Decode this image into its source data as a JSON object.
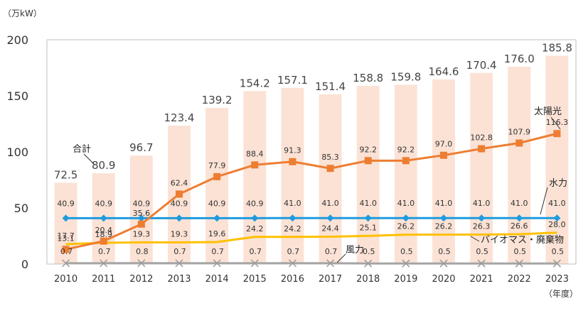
{
  "chart_data": {
    "type": "bar+line",
    "unit_label": "（万kW）",
    "x_unit_label": "（年度）",
    "categories": [
      "2010",
      "2011",
      "2012",
      "2013",
      "2014",
      "2015",
      "2016",
      "2017",
      "2018",
      "2019",
      "2020",
      "2021",
      "2022",
      "2023"
    ],
    "ylim": [
      0,
      200
    ],
    "yticks": [
      "0",
      "50",
      "100",
      "150",
      "200"
    ],
    "grid": false,
    "bars": {
      "name": "合計",
      "color": "#fbe2d5",
      "values": [
        72.5,
        80.9,
        96.7,
        123.4,
        139.2,
        154.2,
        157.1,
        151.4,
        158.8,
        159.8,
        164.6,
        170.4,
        176.0,
        185.8
      ],
      "labels": [
        "72.5",
        "80.9",
        "96.7",
        "123.4",
        "139.2",
        "154.2",
        "157.1",
        "151.4",
        "158.8",
        "159.8",
        "164.6",
        "170.4",
        "176.0",
        "185.8"
      ]
    },
    "series": [
      {
        "name": "太陽光",
        "color": "#ed7d31",
        "marker": "square",
        "values": [
          13.1,
          20.4,
          35.6,
          62.4,
          77.9,
          88.4,
          91.3,
          85.3,
          92.2,
          92.2,
          97.0,
          102.8,
          107.9,
          116.3
        ],
        "labels": [
          "13.1",
          "20.4",
          "35.6",
          "62.4",
          "77.9",
          "88.4",
          "91.3",
          "85.3",
          "92.2",
          "92.2",
          "97.0",
          "102.8",
          "107.9",
          "116.3"
        ]
      },
      {
        "name": "水力",
        "color": "#1f9bde",
        "marker": "diamond",
        "values": [
          40.9,
          40.9,
          40.9,
          40.9,
          40.9,
          40.9,
          41.0,
          41.0,
          41.0,
          41.0,
          41.0,
          41.0,
          41.0,
          41.0
        ],
        "labels": [
          "40.9",
          "40.9",
          "40.9",
          "40.9",
          "40.9",
          "40.9",
          "41.0",
          "41.0",
          "41.0",
          "41.0",
          "41.0",
          "41.0",
          "41.0",
          "41.0"
        ]
      },
      {
        "name": "バイオマス・廃棄物",
        "color": "#ffc000",
        "marker": "none",
        "values": [
          17.7,
          18.9,
          19.3,
          19.3,
          19.6,
          24.2,
          24.2,
          24.4,
          25.1,
          26.2,
          26.2,
          26.3,
          26.6,
          28.0
        ],
        "labels": [
          "17.7",
          "18.9",
          "19.3",
          "19.3",
          "19.6",
          "24.2",
          "24.2",
          "24.4",
          "25.1",
          "26.2",
          "26.2",
          "26.3",
          "26.6",
          "28.0"
        ]
      },
      {
        "name": "風力",
        "color": "#a5a5a5",
        "marker": "x",
        "values": [
          0.7,
          0.7,
          0.8,
          0.7,
          0.7,
          0.7,
          0.7,
          0.7,
          0.5,
          0.5,
          0.5,
          0.5,
          0.5,
          0.5
        ],
        "labels": [
          "0.7",
          "0.7",
          "0.8",
          "0.7",
          "0.7",
          "0.7",
          "0.7",
          "0.7",
          "0.5",
          "0.5",
          "0.5",
          "0.5",
          "0.5",
          "0.5"
        ]
      }
    ]
  }
}
